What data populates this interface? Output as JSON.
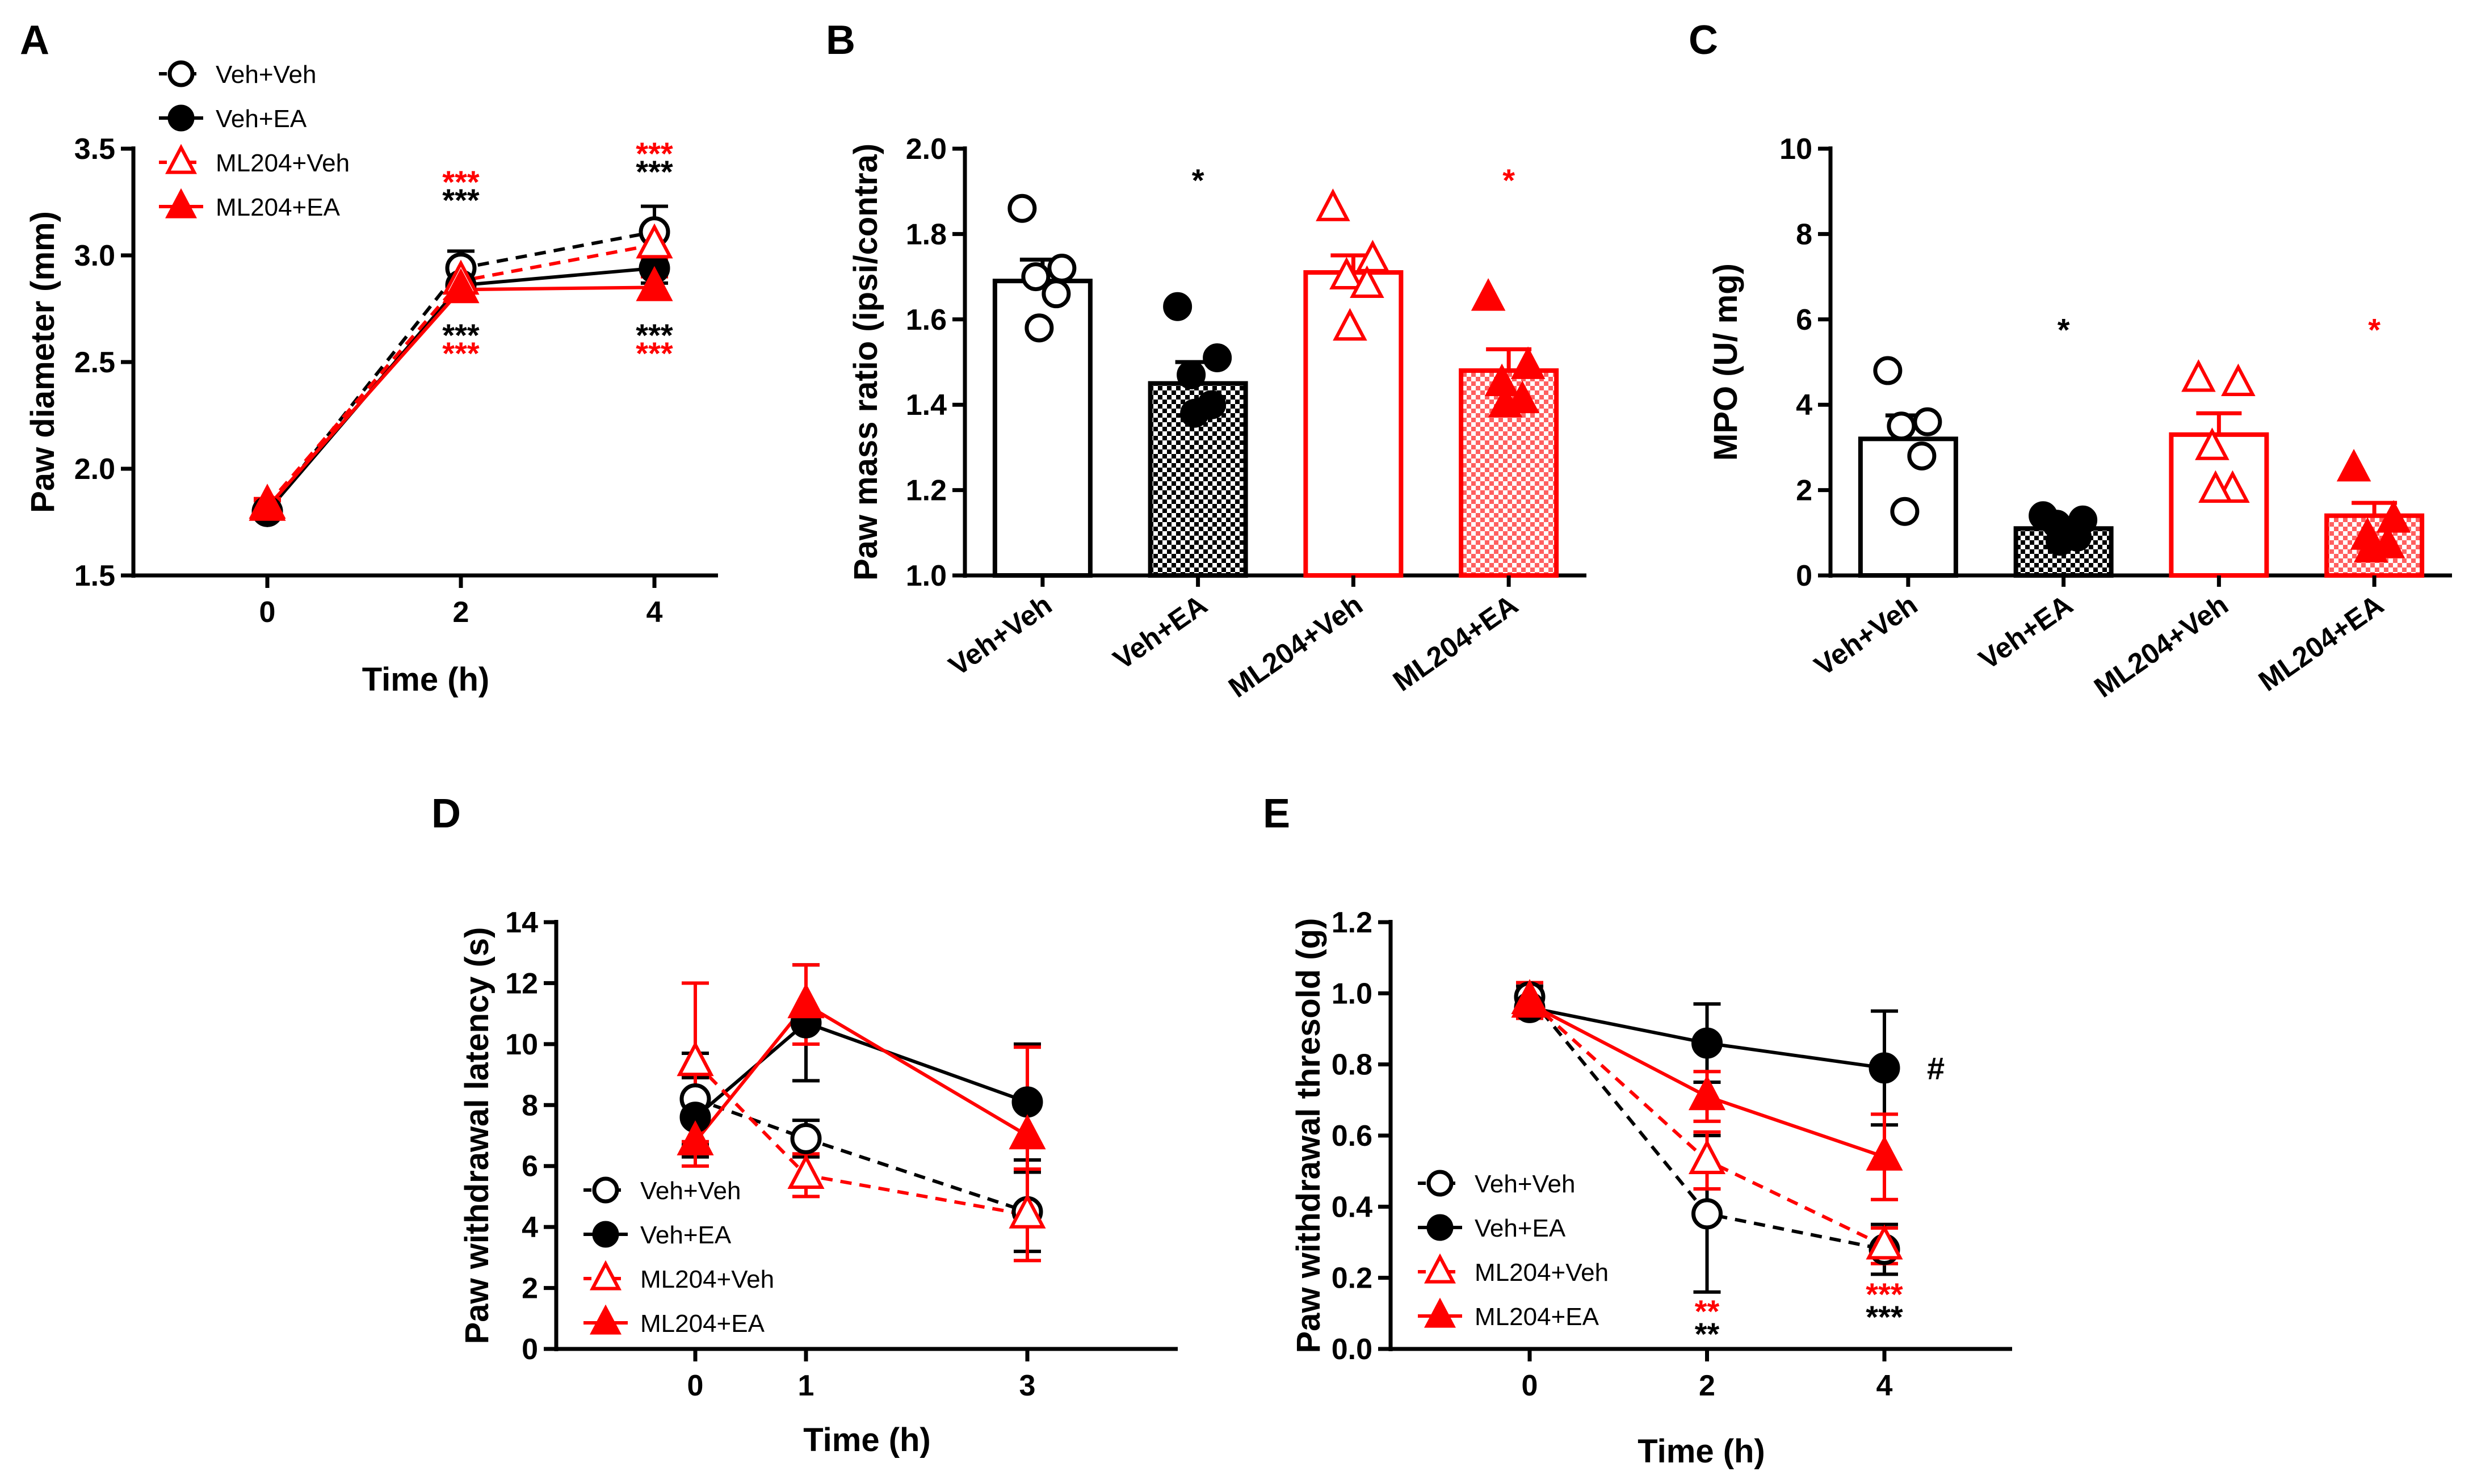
{
  "colors": {
    "black": "#000000",
    "red": "#ff0000"
  },
  "chart_data": [
    {
      "id": "A",
      "panel": "A",
      "type": "line",
      "xlabel": "Time (h)",
      "ylabel": "Paw diameter (mm)",
      "ylim": [
        1.5,
        3.5
      ],
      "yticks": [
        1.5,
        2.0,
        2.5,
        3.0,
        3.5
      ],
      "ytick_labels": [
        "1.5",
        "2.0",
        "2.5",
        "3.0",
        "3.5"
      ],
      "x": [
        0,
        2,
        4
      ],
      "x_labels": [
        "0",
        "2",
        "4"
      ],
      "series": [
        {
          "name": "Veh+Veh",
          "color": "#000000",
          "marker": "circle-open",
          "dash": true,
          "values": [
            1.8,
            2.94,
            3.11
          ],
          "err": [
            0.03,
            0.08,
            0.12
          ]
        },
        {
          "name": "Veh+EA",
          "color": "#000000",
          "marker": "circle-filled",
          "dash": false,
          "values": [
            1.8,
            2.86,
            2.94
          ],
          "err": [
            0.03,
            0.06,
            0.07
          ]
        },
        {
          "name": "ML204+Veh",
          "color": "#ff0000",
          "marker": "triangle-open",
          "dash": true,
          "values": [
            1.83,
            2.88,
            3.05
          ],
          "err": [
            0.03,
            0.05,
            0.07
          ]
        },
        {
          "name": "ML204+EA",
          "color": "#ff0000",
          "marker": "triangle-filled",
          "dash": false,
          "values": [
            1.82,
            2.84,
            2.85
          ],
          "err": [
            0.03,
            0.04,
            0.05
          ]
        }
      ],
      "annotations": [
        {
          "text": "***",
          "color": "#ff0000",
          "x": 2,
          "pos": "above"
        },
        {
          "text": "***",
          "color": "#000000",
          "x": 2,
          "pos": "above"
        },
        {
          "text": "***",
          "color": "#ff0000",
          "x": 4,
          "pos": "above"
        },
        {
          "text": "***",
          "color": "#000000",
          "x": 4,
          "pos": "above"
        },
        {
          "text": "***",
          "color": "#000000",
          "x": 2,
          "pos": "below"
        },
        {
          "text": "***",
          "color": "#ff0000",
          "x": 2,
          "pos": "below"
        },
        {
          "text": "***",
          "color": "#000000",
          "x": 4,
          "pos": "below"
        },
        {
          "text": "***",
          "color": "#ff0000",
          "x": 4,
          "pos": "below"
        }
      ]
    },
    {
      "id": "B",
      "panel": "B",
      "type": "bar",
      "xlabel": "",
      "ylabel": "Paw mass ratio (ipsi/contra)",
      "ylim": [
        1.0,
        2.0
      ],
      "yticks": [
        1.0,
        1.2,
        1.4,
        1.6,
        1.8,
        2.0
      ],
      "ytick_labels": [
        "1.0",
        "1.2",
        "1.4",
        "1.6",
        "1.8",
        "2.0"
      ],
      "categories": [
        "Veh+Veh",
        "Veh+EA",
        "ML204+Veh",
        "ML204+EA"
      ],
      "values": [
        1.69,
        1.45,
        1.71,
        1.48
      ],
      "err": [
        0.05,
        0.05,
        0.04,
        0.05
      ],
      "points": [
        [
          1.86,
          1.72,
          1.7,
          1.66,
          1.58
        ],
        [
          1.63,
          1.51,
          1.47,
          1.4,
          1.38
        ],
        [
          1.86,
          1.74,
          1.7,
          1.68,
          1.58
        ],
        [
          1.65,
          1.49,
          1.45,
          1.41,
          1.4
        ]
      ],
      "colors": [
        "#000000",
        "#000000",
        "#ff0000",
        "#ff0000"
      ],
      "patterned": [
        false,
        true,
        false,
        true
      ],
      "markers": [
        "circle-open",
        "circle-filled",
        "triangle-open",
        "triangle-filled"
      ],
      "sig": [
        "",
        "*",
        "",
        "*"
      ],
      "sig_colors": [
        "#000000",
        "#000000",
        "#ff0000",
        "#ff0000"
      ]
    },
    {
      "id": "C",
      "panel": "C",
      "type": "bar",
      "xlabel": "",
      "ylabel": "MPO (U/ mg)",
      "ylim": [
        0,
        10
      ],
      "yticks": [
        0,
        2,
        4,
        6,
        8,
        10
      ],
      "ytick_labels": [
        "0",
        "2",
        "4",
        "6",
        "8",
        "10"
      ],
      "categories": [
        "Veh+Veh",
        "Veh+EA",
        "ML204+Veh",
        "ML204+EA"
      ],
      "values": [
        3.2,
        1.1,
        3.3,
        1.4
      ],
      "err": [
        0.55,
        0.15,
        0.5,
        0.3
      ],
      "points": [
        [
          4.8,
          3.6,
          3.5,
          2.8,
          1.5
        ],
        [
          1.4,
          1.3,
          1.2,
          0.9,
          0.8
        ],
        [
          4.6,
          4.5,
          3.0,
          2.0,
          2.0
        ],
        [
          2.5,
          1.3,
          0.9,
          0.7,
          0.6
        ]
      ],
      "colors": [
        "#000000",
        "#000000",
        "#ff0000",
        "#ff0000"
      ],
      "patterned": [
        false,
        true,
        false,
        true
      ],
      "markers": [
        "circle-open",
        "circle-filled",
        "triangle-open",
        "triangle-filled"
      ],
      "sig": [
        "",
        "*",
        "",
        "*"
      ],
      "sig_colors": [
        "#000000",
        "#000000",
        "#ff0000",
        "#ff0000"
      ]
    },
    {
      "id": "D",
      "panel": "D",
      "type": "line",
      "xlabel": "Time (h)",
      "ylabel": "Paw withdrawal latency (s)",
      "ylim": [
        0,
        14
      ],
      "yticks": [
        0,
        2,
        4,
        6,
        8,
        10,
        12,
        14
      ],
      "ytick_labels": [
        "0",
        "2",
        "4",
        "6",
        "8",
        "10",
        "12",
        "14"
      ],
      "x": [
        0,
        1,
        3
      ],
      "x_labels": [
        "0",
        "1",
        "3"
      ],
      "series": [
        {
          "name": "Veh+Veh",
          "color": "#000000",
          "marker": "circle-open",
          "dash": true,
          "values": [
            8.2,
            6.9,
            4.5
          ],
          "err": [
            1.5,
            0.6,
            1.3
          ]
        },
        {
          "name": "Veh+EA",
          "color": "#000000",
          "marker": "circle-filled",
          "dash": false,
          "values": [
            7.6,
            10.7,
            8.1
          ],
          "err": [
            1.3,
            1.9,
            1.9
          ]
        },
        {
          "name": "ML204+Veh",
          "color": "#ff0000",
          "marker": "triangle-open",
          "dash": true,
          "values": [
            9.4,
            5.7,
            4.4
          ],
          "err": [
            2.6,
            0.7,
            1.5
          ]
        },
        {
          "name": "ML204+EA",
          "color": "#ff0000",
          "marker": "triangle-filled",
          "dash": false,
          "values": [
            6.8,
            11.3,
            7.0
          ],
          "err": [
            0.8,
            1.3,
            2.9
          ]
        }
      ],
      "annotations": []
    },
    {
      "id": "E",
      "panel": "E",
      "type": "line",
      "xlabel": "Time (h)",
      "ylabel": "Paw withdrawal thresold (g)",
      "ylim": [
        0.0,
        1.2
      ],
      "yticks": [
        0.0,
        0.2,
        0.4,
        0.6,
        0.8,
        1.0,
        1.2
      ],
      "ytick_labels": [
        "0.0",
        "0.2",
        "0.4",
        "0.6",
        "0.8",
        "1.0",
        "1.2"
      ],
      "x": [
        0,
        2,
        4
      ],
      "x_labels": [
        "0",
        "2",
        "4"
      ],
      "series": [
        {
          "name": "Veh+Veh",
          "color": "#000000",
          "marker": "circle-open",
          "dash": true,
          "values": [
            0.99,
            0.38,
            0.28
          ],
          "err": [
            0.03,
            0.22,
            0.07
          ]
        },
        {
          "name": "Veh+EA",
          "color": "#000000",
          "marker": "circle-filled",
          "dash": false,
          "values": [
            0.96,
            0.86,
            0.79
          ],
          "err": [
            0.03,
            0.11,
            0.16
          ]
        },
        {
          "name": "ML204+Veh",
          "color": "#ff0000",
          "marker": "triangle-open",
          "dash": true,
          "values": [
            0.98,
            0.53,
            0.29
          ],
          "err": [
            0.05,
            0.08,
            0.05
          ]
        },
        {
          "name": "ML204+EA",
          "color": "#ff0000",
          "marker": "triangle-filled",
          "dash": false,
          "values": [
            0.97,
            0.71,
            0.54
          ],
          "err": [
            0.04,
            0.07,
            0.12
          ]
        }
      ],
      "annotations": [
        {
          "text": "#",
          "color": "#000000",
          "x": 4,
          "pos": "right"
        },
        {
          "text": "**",
          "color": "#ff0000",
          "x": 2,
          "pos": "bottom1"
        },
        {
          "text": "**",
          "color": "#000000",
          "x": 2,
          "pos": "bottom2"
        },
        {
          "text": "***",
          "color": "#ff0000",
          "x": 4,
          "pos": "bottom1"
        },
        {
          "text": "***",
          "color": "#000000",
          "x": 4,
          "pos": "bottom2"
        }
      ]
    }
  ]
}
